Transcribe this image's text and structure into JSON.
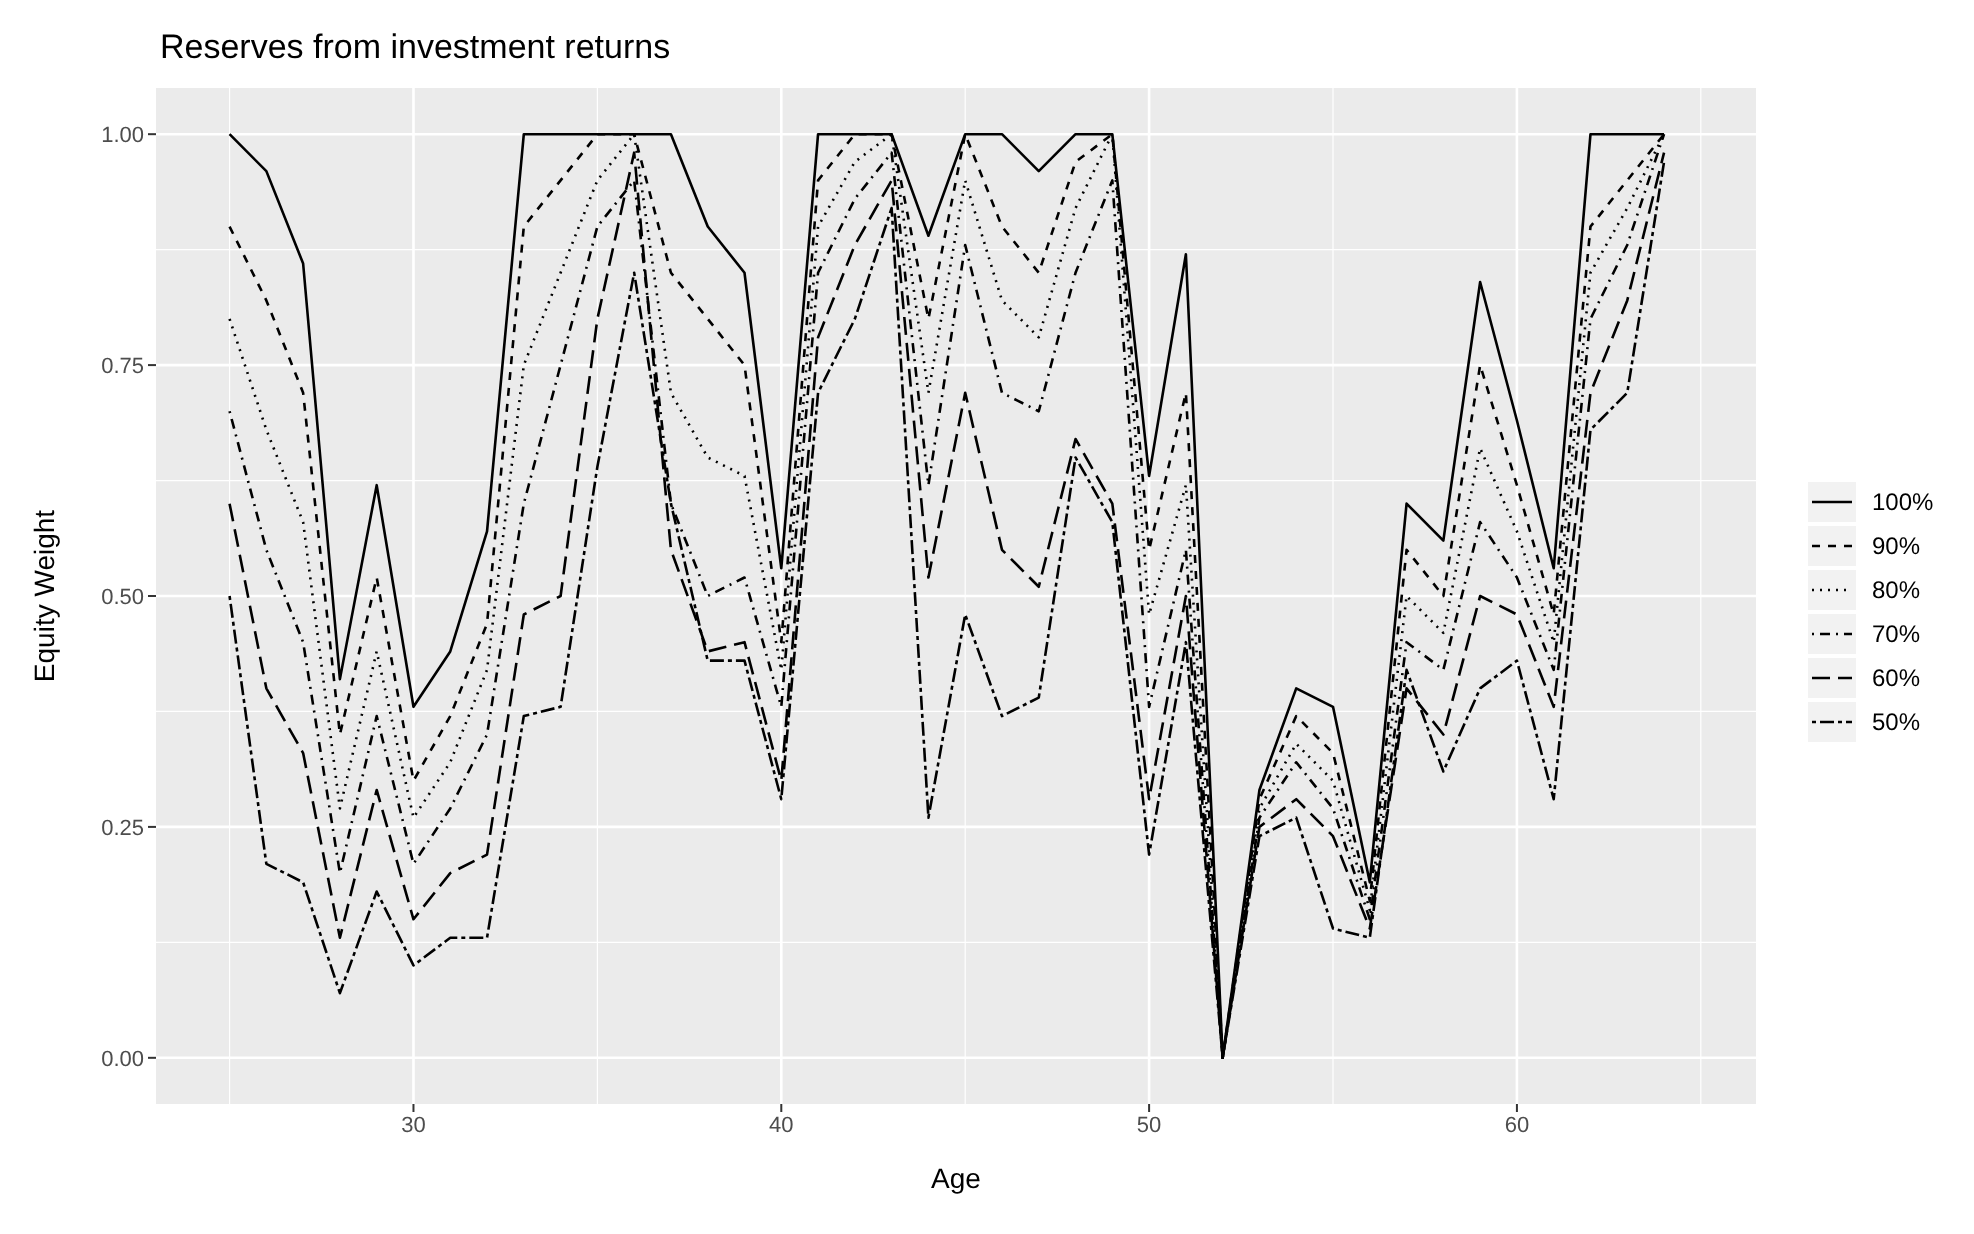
{
  "chart_data": {
    "type": "line",
    "title": "Reserves from investment returns",
    "xlabel": "Age",
    "ylabel": "Equity Weight",
    "x": [
      25,
      26,
      27,
      28,
      29,
      30,
      31,
      32,
      33,
      34,
      35,
      36,
      37,
      38,
      39,
      40,
      41,
      42,
      43,
      44,
      45,
      46,
      47,
      48,
      49,
      50,
      51,
      52,
      53,
      54,
      55,
      56,
      57,
      58,
      59,
      60,
      61,
      62,
      63,
      64
    ],
    "xlim": [
      23,
      66.5
    ],
    "xticks": [
      30,
      40,
      50,
      60
    ],
    "ylim": [
      -0.05,
      1.05
    ],
    "yticks": [
      {
        "value": 0,
        "label": "0.00"
      },
      {
        "value": 0.25,
        "label": "0.25"
      },
      {
        "value": 0.5,
        "label": "0.50"
      },
      {
        "value": 0.75,
        "label": "0.75"
      },
      {
        "value": 1,
        "label": "1.00"
      }
    ],
    "grid": true,
    "legend": "right",
    "series": [
      {
        "name": "100%",
        "color": "#000000",
        "line_style": "solid",
        "values": [
          1.0,
          0.96,
          0.86,
          0.41,
          0.62,
          0.38,
          0.44,
          0.57,
          1.0,
          1.0,
          1.0,
          1.0,
          1.0,
          0.9,
          0.85,
          0.53,
          1.0,
          1.0,
          1.0,
          0.89,
          1.0,
          1.0,
          0.96,
          1.0,
          1.0,
          0.63,
          0.87,
          0.0,
          0.29,
          0.4,
          0.38,
          0.19,
          0.6,
          0.56,
          0.84,
          0.69,
          0.53,
          1.0,
          1.0,
          1.0
        ]
      },
      {
        "name": "90%",
        "color": "#000000",
        "line_style": "dashed",
        "values": [
          0.9,
          0.82,
          0.72,
          0.35,
          0.52,
          0.3,
          0.37,
          0.47,
          0.9,
          0.95,
          1.0,
          1.0,
          0.85,
          0.8,
          0.75,
          0.45,
          0.95,
          1.0,
          1.0,
          0.8,
          1.0,
          0.9,
          0.85,
          0.97,
          1.0,
          0.55,
          0.72,
          0.0,
          0.28,
          0.37,
          0.33,
          0.17,
          0.55,
          0.5,
          0.75,
          0.62,
          0.48,
          0.9,
          0.95,
          1.0
        ]
      },
      {
        "name": "80%",
        "color": "#000000",
        "line_style": "dotted",
        "values": [
          0.8,
          0.68,
          0.58,
          0.27,
          0.44,
          0.26,
          0.32,
          0.42,
          0.75,
          0.85,
          0.95,
          1.0,
          0.72,
          0.65,
          0.63,
          0.42,
          0.9,
          0.97,
          1.0,
          0.72,
          0.95,
          0.82,
          0.78,
          0.92,
          1.0,
          0.48,
          0.62,
          0.0,
          0.27,
          0.34,
          0.3,
          0.16,
          0.5,
          0.46,
          0.66,
          0.57,
          0.45,
          0.85,
          0.92,
          1.0
        ]
      },
      {
        "name": "70%",
        "color": "#000000",
        "line_style": "dashdot",
        "values": [
          0.7,
          0.55,
          0.45,
          0.2,
          0.37,
          0.21,
          0.27,
          0.35,
          0.6,
          0.75,
          0.9,
          0.95,
          0.6,
          0.5,
          0.52,
          0.38,
          0.85,
          0.93,
          0.98,
          0.62,
          0.88,
          0.72,
          0.7,
          0.85,
          0.95,
          0.38,
          0.55,
          0.0,
          0.26,
          0.32,
          0.27,
          0.15,
          0.45,
          0.42,
          0.58,
          0.52,
          0.42,
          0.8,
          0.88,
          1.0
        ]
      },
      {
        "name": "60%",
        "color": "#000000",
        "line_style": "longdash",
        "values": [
          0.6,
          0.4,
          0.33,
          0.13,
          0.29,
          0.15,
          0.2,
          0.22,
          0.48,
          0.5,
          0.8,
          0.98,
          0.55,
          0.44,
          0.45,
          0.3,
          0.78,
          0.88,
          0.95,
          0.52,
          0.72,
          0.55,
          0.51,
          0.67,
          0.6,
          0.28,
          0.5,
          0.0,
          0.25,
          0.28,
          0.24,
          0.14,
          0.4,
          0.35,
          0.5,
          0.48,
          0.38,
          0.72,
          0.82,
          0.98
        ]
      },
      {
        "name": "50%",
        "color": "#000000",
        "line_style": "twodash",
        "values": [
          0.5,
          0.21,
          0.19,
          0.07,
          0.18,
          0.1,
          0.13,
          0.13,
          0.37,
          0.38,
          0.64,
          0.85,
          0.6,
          0.43,
          0.43,
          0.28,
          0.72,
          0.8,
          0.92,
          0.26,
          0.48,
          0.37,
          0.39,
          0.65,
          0.58,
          0.22,
          0.45,
          0.0,
          0.24,
          0.26,
          0.14,
          0.13,
          0.42,
          0.31,
          0.4,
          0.43,
          0.28,
          0.68,
          0.72,
          0.97
        ]
      }
    ]
  }
}
